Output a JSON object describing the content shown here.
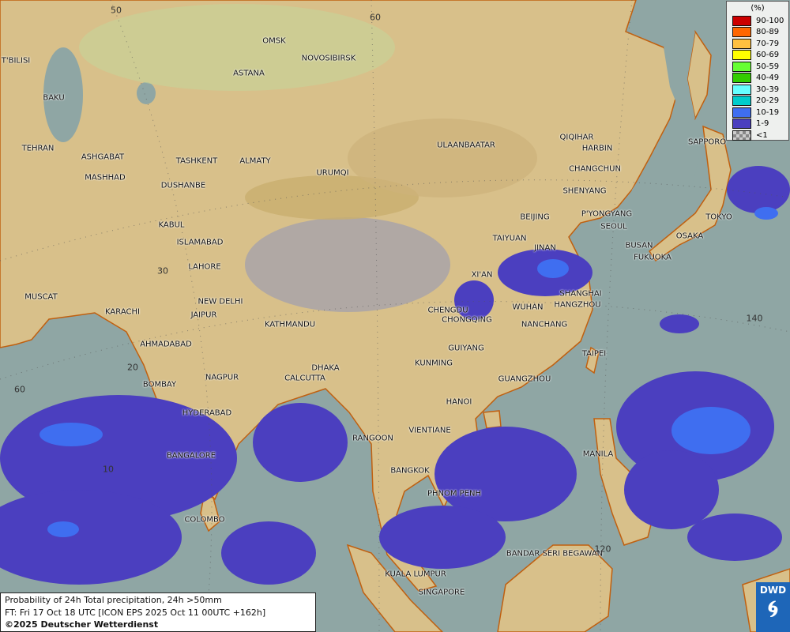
{
  "map": {
    "ocean_color": "#8fa6a4",
    "land_color": "#d8c08a",
    "precip_colors": {
      "1-9": "#4b3fbf",
      "10-19": "#3f6ef0"
    },
    "cities": [
      "OMSK",
      "NOVOSIBIRSK",
      "ASTANA",
      "T'BILISI",
      "BAKU",
      "TEHRAN",
      "ASHGABAT",
      "MASHHAD",
      "TASHKENT",
      "ALMATY",
      "DUSHANBE",
      "URUMQI",
      "ULAANBAATAR",
      "QIQIHAR",
      "HARBIN",
      "CHANGCHUN",
      "SHENYANG",
      "SAPPORO",
      "BEIJING",
      "P'YONGYANG",
      "SEOUL",
      "TOKYO",
      "OSAKA",
      "BUSAN",
      "FUKUOKA",
      "TAIYUAN",
      "JINAN",
      "KABUL",
      "ISLAMABAD",
      "LAHORE",
      "XI'AN",
      "SHANGHAI",
      "HANGZHOU",
      "WUHAN",
      "CHENGDU",
      "CHONGQING",
      "NANCHANG",
      "NEW DELHI",
      "JAIPUR",
      "KARACHI",
      "MUSCAT",
      "KATHMANDU",
      "AHMADABAD",
      "GUIYANG",
      "TAIPEI",
      "KUNMING",
      "DHAKA",
      "NAGPUR",
      "CALCUTTA",
      "BOMBAY",
      "GUANGZHOU",
      "HANOI",
      "HYDERABAD",
      "RANGOON",
      "VIENTIANE",
      "MANILA",
      "BANGALORE",
      "BANGKOK",
      "PHNOM PENH",
      "COLOMBO",
      "BANDAR SERI BEGAWAN",
      "KUALA LUMPUR",
      "SINGAPORE"
    ],
    "grid_labels": [
      "50",
      "60",
      "30",
      "20",
      "10",
      "60",
      "140",
      "120"
    ]
  },
  "legend": {
    "unit": "(%)",
    "items": [
      {
        "label": "90-100",
        "color": "#cc0000"
      },
      {
        "label": "80-89",
        "color": "#ff6600"
      },
      {
        "label": "70-79",
        "color": "#ffc040"
      },
      {
        "label": "60-69",
        "color": "#ffff00"
      },
      {
        "label": "50-59",
        "color": "#66ff33"
      },
      {
        "label": "40-49",
        "color": "#33cc00"
      },
      {
        "label": "30-39",
        "color": "#66ffff"
      },
      {
        "label": "20-29",
        "color": "#00cccc"
      },
      {
        "label": "10-19",
        "color": "#3f6ef0"
      },
      {
        "label": "1-9",
        "color": "#4b3fbf"
      },
      {
        "label": "<1",
        "color": "checker"
      }
    ]
  },
  "info": {
    "line1": "Probability of 24h Total precipitation, 24h >50mm",
    "line2": "FT: Fri 17 Oct 18 UTC [ICON EPS 2025 Oct 11 00UTC +162h]",
    "copyright": "©2025 Deutscher Wetterdienst"
  },
  "logo": {
    "text": "DWD"
  }
}
